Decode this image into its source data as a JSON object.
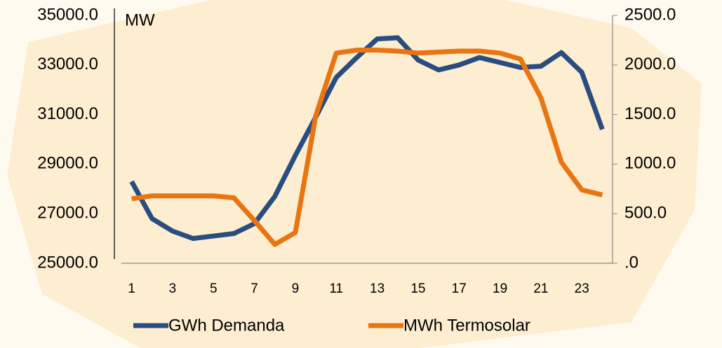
{
  "chart_data": {
    "type": "line",
    "y_label": "MW",
    "x": [
      1,
      2,
      3,
      4,
      5,
      6,
      7,
      8,
      9,
      10,
      11,
      12,
      13,
      14,
      15,
      16,
      17,
      18,
      19,
      20,
      21,
      22,
      23,
      24
    ],
    "xlim": [
      0.5,
      24.5
    ],
    "xticks": [
      1,
      3,
      5,
      7,
      9,
      11,
      13,
      15,
      17,
      19,
      21,
      23
    ],
    "ylim": [
      25000,
      35000
    ],
    "yticks": [
      {
        "value": 25000,
        "label": "25000.0"
      },
      {
        "value": 27000,
        "label": "27000.0"
      },
      {
        "value": 29000,
        "label": "29000.0"
      },
      {
        "value": 31000,
        "label": "31000.0"
      },
      {
        "value": 33000,
        "label": "33000.0"
      },
      {
        "value": 35000,
        "label": "35000.0"
      }
    ],
    "y2lim": [
      0,
      2500
    ],
    "y2ticks": [
      {
        "value": 0,
        "label": ".0"
      },
      {
        "value": 500,
        "label": "500.0"
      },
      {
        "value": 1000,
        "label": "1000.0"
      },
      {
        "value": 1500,
        "label": "1500.0"
      },
      {
        "value": 2000,
        "label": "2000.0"
      },
      {
        "value": 2500,
        "label": "2500.0"
      }
    ],
    "legend": "bottom",
    "series": [
      {
        "name": "GWh Demanda",
        "color": "#2a4d7f",
        "values": [
          28300,
          26800,
          26300,
          26000,
          26100,
          26200,
          26600,
          27700,
          29350,
          30900,
          32500,
          33300,
          34050,
          34100,
          33200,
          32800,
          33000,
          33300,
          33100,
          32900,
          32950,
          33500,
          32700,
          30400
        ]
      },
      {
        "name": "MWh Termosolar",
        "color": "#e87511",
        "axis": "y2",
        "values": [
          650,
          680,
          680,
          680,
          680,
          660,
          430,
          190,
          310,
          1490,
          2120,
          2150,
          2150,
          2140,
          2120,
          2130,
          2140,
          2140,
          2120,
          2060,
          1670,
          1020,
          740,
          690
        ]
      }
    ]
  }
}
